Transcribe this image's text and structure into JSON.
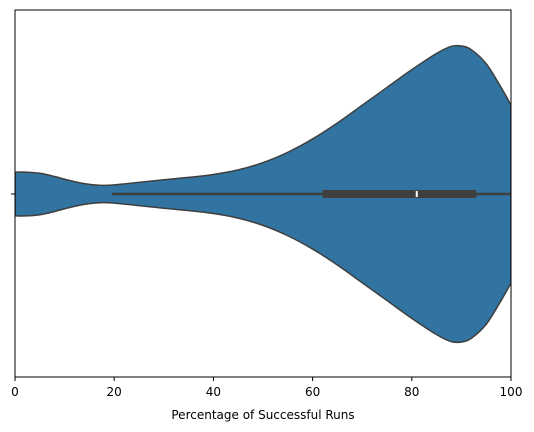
{
  "chart_data": {
    "type": "violin",
    "orientation": "horizontal",
    "title": "",
    "xlabel": "Percentage of Successful Runs",
    "ylabel": "",
    "xlim": [
      0,
      100
    ],
    "x_ticks": [
      0,
      20,
      40,
      60,
      80,
      100
    ],
    "x_tick_labels": [
      "0",
      "20",
      "40",
      "60",
      "80",
      "100"
    ],
    "y_ticks": [
      ""
    ],
    "grid": false,
    "legend": "none",
    "fill_color": "#3274a1",
    "edge_color": "#3f3f3f",
    "box": {
      "whisker_low": 19.5,
      "q1": 62,
      "median": 81,
      "q3": 93,
      "whisker_high": 100
    },
    "density": {
      "x": [
        0,
        2,
        5,
        8,
        11,
        14,
        17,
        20,
        25,
        30,
        35,
        40,
        45,
        50,
        55,
        60,
        65,
        70,
        75,
        80,
        85,
        88,
        90,
        92,
        95,
        98,
        100
      ],
      "relative_width": [
        0.147,
        0.148,
        0.14,
        0.118,
        0.091,
        0.07,
        0.059,
        0.062,
        0.079,
        0.096,
        0.112,
        0.132,
        0.163,
        0.212,
        0.282,
        0.372,
        0.48,
        0.6,
        0.72,
        0.84,
        0.95,
        0.998,
        1.0,
        0.975,
        0.88,
        0.72,
        0.601
      ]
    }
  }
}
